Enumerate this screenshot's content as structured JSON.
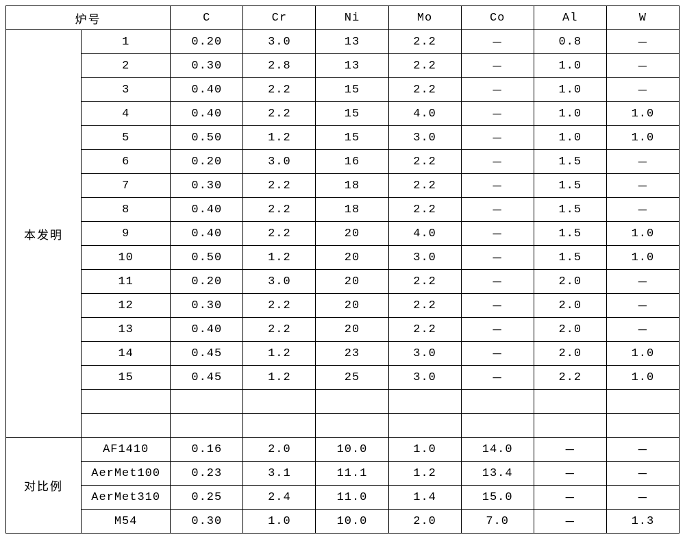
{
  "table": {
    "type": "table",
    "header_cols": [
      "炉号",
      "C",
      "Cr",
      "Ni",
      "Mo",
      "Co",
      "Al",
      "W"
    ],
    "groups": [
      {
        "label": "本发明",
        "rows": [
          {
            "id": "1",
            "C": "0.20",
            "Cr": "3.0",
            "Ni": "13",
            "Mo": "2.2",
            "Co": "－",
            "Al": "0.8",
            "W": "－"
          },
          {
            "id": "2",
            "C": "0.30",
            "Cr": "2.8",
            "Ni": "13",
            "Mo": "2.2",
            "Co": "－",
            "Al": "1.0",
            "W": "－"
          },
          {
            "id": "3",
            "C": "0.40",
            "Cr": "2.2",
            "Ni": "15",
            "Mo": "2.2",
            "Co": "－",
            "Al": "1.0",
            "W": "－"
          },
          {
            "id": "4",
            "C": "0.40",
            "Cr": "2.2",
            "Ni": "15",
            "Mo": "4.0",
            "Co": "－",
            "Al": "1.0",
            "W": "1.0"
          },
          {
            "id": "5",
            "C": "0.50",
            "Cr": "1.2",
            "Ni": "15",
            "Mo": "3.0",
            "Co": "－",
            "Al": "1.0",
            "W": "1.0"
          },
          {
            "id": "6",
            "C": "0.20",
            "Cr": "3.0",
            "Ni": "16",
            "Mo": "2.2",
            "Co": "－",
            "Al": "1.5",
            "W": "－"
          },
          {
            "id": "7",
            "C": "0.30",
            "Cr": "2.2",
            "Ni": "18",
            "Mo": "2.2",
            "Co": "－",
            "Al": "1.5",
            "W": "－"
          },
          {
            "id": "8",
            "C": "0.40",
            "Cr": "2.2",
            "Ni": "18",
            "Mo": "2.2",
            "Co": "－",
            "Al": "1.5",
            "W": "－"
          },
          {
            "id": "9",
            "C": "0.40",
            "Cr": "2.2",
            "Ni": "20",
            "Mo": "4.0",
            "Co": "－",
            "Al": "1.5",
            "W": "1.0"
          },
          {
            "id": "10",
            "C": "0.50",
            "Cr": "1.2",
            "Ni": "20",
            "Mo": "3.0",
            "Co": "－",
            "Al": "1.5",
            "W": "1.0"
          },
          {
            "id": "11",
            "C": "0.20",
            "Cr": "3.0",
            "Ni": "20",
            "Mo": "2.2",
            "Co": "－",
            "Al": "2.0",
            "W": "－"
          },
          {
            "id": "12",
            "C": "0.30",
            "Cr": "2.2",
            "Ni": "20",
            "Mo": "2.2",
            "Co": "－",
            "Al": "2.0",
            "W": "－"
          },
          {
            "id": "13",
            "C": "0.40",
            "Cr": "2.2",
            "Ni": "20",
            "Mo": "2.2",
            "Co": "－",
            "Al": "2.0",
            "W": "－"
          },
          {
            "id": "14",
            "C": "0.45",
            "Cr": "1.2",
            "Ni": "23",
            "Mo": "3.0",
            "Co": "－",
            "Al": "2.0",
            "W": "1.0"
          },
          {
            "id": "15",
            "C": "0.45",
            "Cr": "1.2",
            "Ni": "25",
            "Mo": "3.0",
            "Co": "－",
            "Al": "2.2",
            "W": "1.0"
          },
          {
            "id": "",
            "C": "",
            "Cr": "",
            "Ni": "",
            "Mo": "",
            "Co": "",
            "Al": "",
            "W": ""
          },
          {
            "id": "",
            "C": "",
            "Cr": "",
            "Ni": "",
            "Mo": "",
            "Co": "",
            "Al": "",
            "W": ""
          }
        ]
      },
      {
        "label": "对比例",
        "rows": [
          {
            "id": "AF1410",
            "C": "0.16",
            "Cr": "2.0",
            "Ni": "10.0",
            "Mo": "1.0",
            "Co": "14.0",
            "Al": "－",
            "W": "－"
          },
          {
            "id": "AerMet100",
            "C": "0.23",
            "Cr": "3.1",
            "Ni": "11.1",
            "Mo": "1.2",
            "Co": "13.4",
            "Al": "－",
            "W": "－"
          },
          {
            "id": "AerMet310",
            "C": "0.25",
            "Cr": "2.4",
            "Ni": "11.0",
            "Mo": "1.4",
            "Co": "15.0",
            "Al": "－",
            "W": "－"
          },
          {
            "id": "M54",
            "C": "0.30",
            "Cr": "1.0",
            "Ni": "10.0",
            "Mo": "2.0",
            "Co": "7.0",
            "Al": "－",
            "W": "1.3"
          }
        ]
      }
    ],
    "border_color": "#000000",
    "background_color": "#ffffff",
    "font_size_pt": 13
  }
}
